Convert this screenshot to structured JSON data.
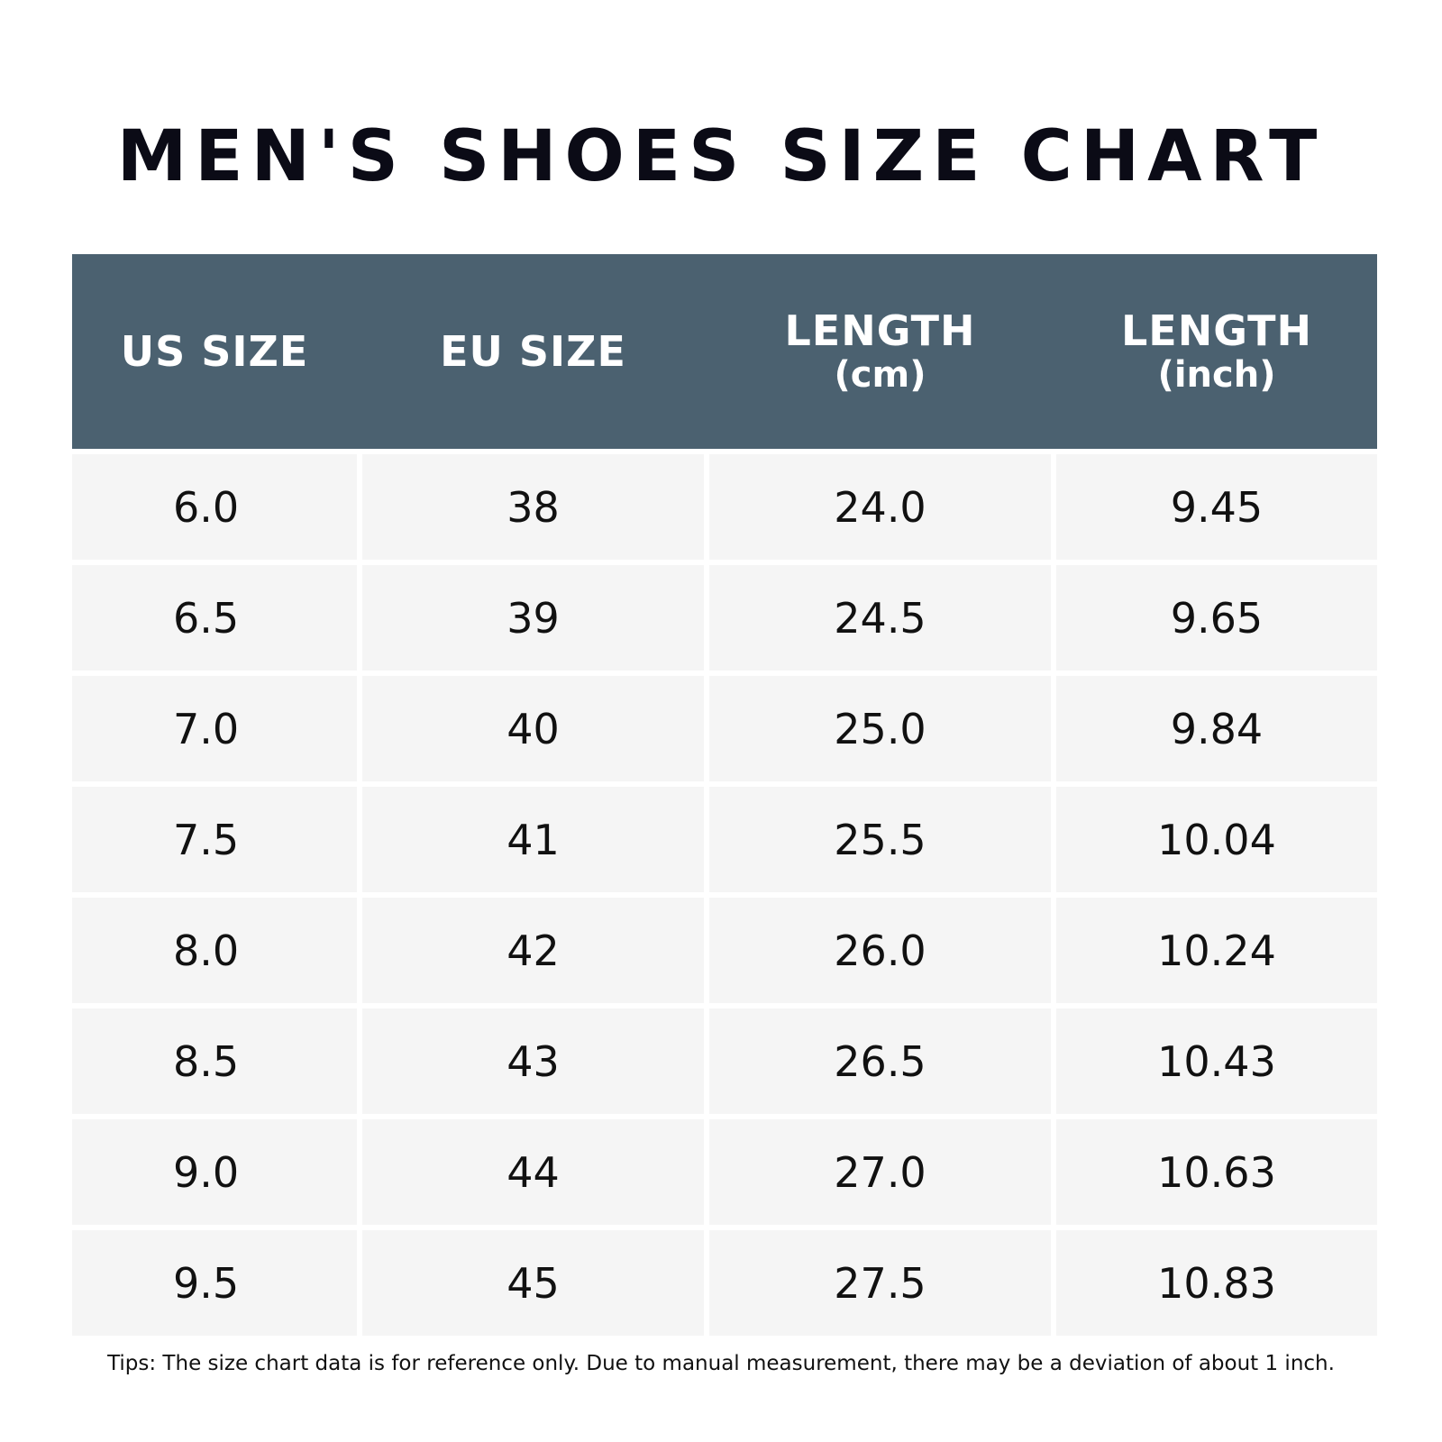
{
  "title": "MEN'S SHOES SIZE CHART",
  "table": {
    "headers": [
      {
        "main": "US SIZE",
        "sub": ""
      },
      {
        "main": "EU SIZE",
        "sub": ""
      },
      {
        "main": "LENGTH",
        "sub": "(cm)"
      },
      {
        "main": "LENGTH",
        "sub": "(inch)"
      }
    ],
    "rows": [
      [
        "6.0",
        "38",
        "24.0",
        "9.45"
      ],
      [
        "6.5",
        "39",
        "24.5",
        "9.65"
      ],
      [
        "7.0",
        "40",
        "25.0",
        "9.84"
      ],
      [
        "7.5",
        "41",
        "25.5",
        "10.04"
      ],
      [
        "8.0",
        "42",
        "26.0",
        "10.24"
      ],
      [
        "8.5",
        "43",
        "26.5",
        "10.43"
      ],
      [
        "9.0",
        "44",
        "27.0",
        "10.63"
      ],
      [
        "9.5",
        "45",
        "27.5",
        "10.83"
      ]
    ]
  },
  "tips": "Tips: The size chart data is for reference only. Due to manual measurement, there may be a deviation of about 1 inch.",
  "colors": {
    "header_bg": "#4b6170",
    "cell_bg": "#f5f5f5",
    "title_text": "#0b0b16"
  }
}
